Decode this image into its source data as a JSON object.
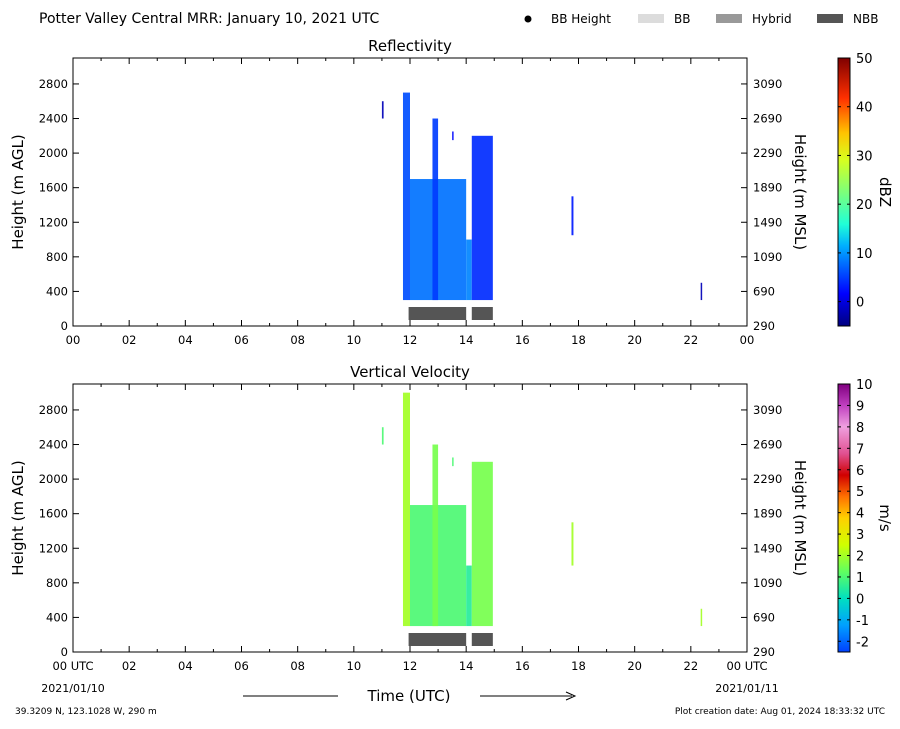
{
  "header": {
    "title": "Potter Valley Central MRR:  January 10, 2021 UTC",
    "legend": [
      {
        "label": "BB Height",
        "color": "#000000",
        "kind": "dot"
      },
      {
        "label": "BB",
        "color": "#dcdcdc",
        "kind": "box"
      },
      {
        "label": "Hybrid",
        "color": "#999999",
        "kind": "box"
      },
      {
        "label": "NBB",
        "color": "#555555",
        "kind": "box"
      }
    ]
  },
  "footer": {
    "location": "39.3209 N, 123.1028 W, 290 m",
    "creation": "Plot creation date: Aug 01, 2024 18:33:32 UTC",
    "xlabel": "Time (UTC)",
    "start_date": "2021/01/10",
    "end_date": "2021/01/11"
  },
  "chart_data": [
    {
      "type": "heatmap",
      "title": "Reflectivity",
      "ylabel": "Height (m AGL)",
      "y2label": "Height (m MSL)",
      "xlabel": "",
      "x_ticks": [
        "00",
        "02",
        "04",
        "06",
        "08",
        "10",
        "12",
        "14",
        "16",
        "18",
        "20",
        "22",
        "00"
      ],
      "xlim": [
        0,
        24
      ],
      "y_ticks": [
        0,
        400,
        800,
        1200,
        1600,
        2000,
        2400,
        2800
      ],
      "ylim": [
        0,
        3100
      ],
      "y2_ticks": [
        290,
        690,
        1090,
        1490,
        1890,
        2290,
        2690,
        3090
      ],
      "colorbar": {
        "label": "dBZ",
        "ticks": [
          0,
          10,
          20,
          30,
          40,
          50
        ],
        "range": [
          -5,
          50
        ]
      },
      "echoes": [
        {
          "t0": 11.0,
          "t1": 11.06,
          "z0": 2400,
          "z1": 2600,
          "value": -2
        },
        {
          "t0": 11.75,
          "t1": 12.0,
          "z0": 300,
          "z1": 2700,
          "value": 6
        },
        {
          "t0": 12.0,
          "t1": 14.0,
          "z0": 300,
          "z1": 1700,
          "value": 8
        },
        {
          "t0": 12.8,
          "t1": 13.0,
          "z0": 300,
          "z1": 2400,
          "value": 5
        },
        {
          "t0": 14.0,
          "t1": 14.2,
          "z0": 300,
          "z1": 1000,
          "value": 9
        },
        {
          "t0": 14.2,
          "t1": 14.95,
          "z0": 300,
          "z1": 2200,
          "value": 4
        },
        {
          "t0": 13.5,
          "t1": 13.55,
          "z0": 2150,
          "z1": 2250,
          "value": 2
        },
        {
          "t0": 17.75,
          "t1": 17.82,
          "z0": 1050,
          "z1": 1500,
          "value": 3
        },
        {
          "t0": 22.35,
          "t1": 22.4,
          "z0": 300,
          "z1": 500,
          "value": -2
        }
      ],
      "bright_band": [
        {
          "t0": 11.95,
          "t1": 14.0,
          "class": "NBB"
        },
        {
          "t0": 14.2,
          "t1": 14.95,
          "class": "NBB"
        }
      ]
    },
    {
      "type": "heatmap",
      "title": "Vertical Velocity",
      "ylabel": "Height (m AGL)",
      "y2label": "Height (m MSL)",
      "xlabel": "Time (UTC)",
      "x_ticks": [
        "00 UTC",
        "02",
        "04",
        "06",
        "08",
        "10",
        "12",
        "14",
        "16",
        "18",
        "20",
        "22",
        "00 UTC"
      ],
      "xlim": [
        0,
        24
      ],
      "y_ticks": [
        0,
        400,
        800,
        1200,
        1600,
        2000,
        2400,
        2800
      ],
      "ylim": [
        0,
        3100
      ],
      "y2_ticks": [
        290,
        690,
        1090,
        1490,
        1890,
        2290,
        2690,
        3090
      ],
      "colorbar": {
        "label": "m/s",
        "ticks": [
          -2,
          -1,
          0,
          1,
          2,
          3,
          4,
          5,
          6,
          7,
          8,
          9,
          10
        ],
        "range": [
          -2.5,
          10
        ]
      },
      "echoes": [
        {
          "t0": 11.0,
          "t1": 11.06,
          "z0": 2400,
          "z1": 2600,
          "value": 1
        },
        {
          "t0": 11.75,
          "t1": 12.0,
          "z0": 300,
          "z1": 3000,
          "value": 2
        },
        {
          "t0": 12.0,
          "t1": 14.0,
          "z0": 300,
          "z1": 1700,
          "value": 1
        },
        {
          "t0": 12.8,
          "t1": 13.0,
          "z0": 300,
          "z1": 2400,
          "value": 1.5
        },
        {
          "t0": 14.0,
          "t1": 14.2,
          "z0": 300,
          "z1": 1000,
          "value": 0.5
        },
        {
          "t0": 14.2,
          "t1": 14.95,
          "z0": 300,
          "z1": 2200,
          "value": 1.5
        },
        {
          "t0": 13.5,
          "t1": 13.55,
          "z0": 2150,
          "z1": 2250,
          "value": 1
        },
        {
          "t0": 17.75,
          "t1": 17.82,
          "z0": 1000,
          "z1": 1500,
          "value": 2
        },
        {
          "t0": 22.35,
          "t1": 22.4,
          "z0": 300,
          "z1": 500,
          "value": 2
        }
      ],
      "bright_band": [
        {
          "t0": 11.95,
          "t1": 14.0,
          "class": "NBB"
        },
        {
          "t0": 14.2,
          "t1": 14.95,
          "class": "NBB"
        }
      ]
    }
  ]
}
